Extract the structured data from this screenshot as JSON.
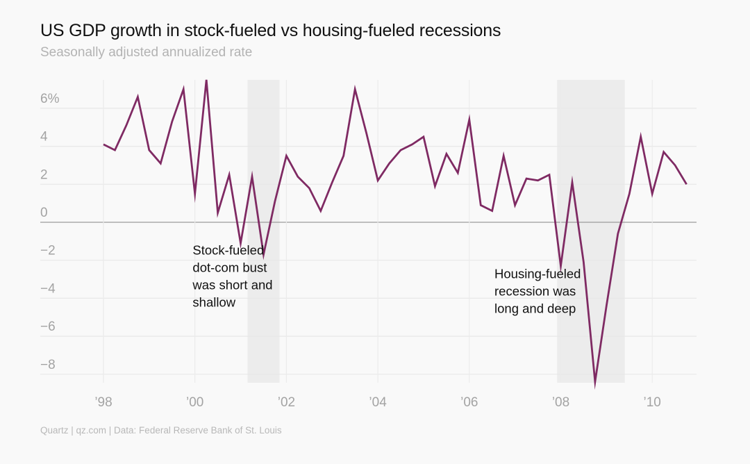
{
  "header": {
    "title": "US GDP growth in stock-fueled vs housing-fueled recessions",
    "subtitle": "Seasonally adjusted annualized rate"
  },
  "footer": {
    "source": "Quartz | qz.com | Data: Federal Reserve Bank of St. Louis"
  },
  "chart_data": {
    "type": "line",
    "title": "US GDP growth in stock-fueled vs housing-fueled recessions",
    "subtitle": "Seasonally adjusted annualized rate",
    "xlabel": "",
    "ylabel": "",
    "xlim": [
      1997.75,
      2011.0
    ],
    "ylim": [
      -8.5,
      7.5
    ],
    "grid": true,
    "line_color": "#7f2a63",
    "recession_color": "#ececec",
    "yticks": [
      {
        "value": 6,
        "label": "6%"
      },
      {
        "value": 4,
        "label": "4"
      },
      {
        "value": 2,
        "label": "2"
      },
      {
        "value": 0,
        "label": "0"
      },
      {
        "value": -2,
        "label": "−2"
      },
      {
        "value": -4,
        "label": "−4"
      },
      {
        "value": -6,
        "label": "−6"
      },
      {
        "value": -8,
        "label": "−8"
      }
    ],
    "xticks": [
      {
        "value": 1998,
        "label": "’98"
      },
      {
        "value": 2000,
        "label": "’00"
      },
      {
        "value": 2002,
        "label": "’02"
      },
      {
        "value": 2004,
        "label": "’04"
      },
      {
        "value": 2006,
        "label": "’06"
      },
      {
        "value": 2008,
        "label": "’08"
      },
      {
        "value": 2010,
        "label": "’10"
      }
    ],
    "recessions": [
      {
        "start": 2001.15,
        "end": 2001.85
      },
      {
        "start": 2007.92,
        "end": 2009.4
      }
    ],
    "series": [
      {
        "name": "GDP growth",
        "x": [
          1998.0,
          1998.25,
          1998.5,
          1998.75,
          1999.0,
          1999.25,
          1999.5,
          1999.75,
          2000.0,
          2000.25,
          2000.5,
          2000.75,
          2001.0,
          2001.25,
          2001.5,
          2001.75,
          2002.0,
          2002.25,
          2002.5,
          2002.75,
          2003.0,
          2003.25,
          2003.5,
          2003.75,
          2004.0,
          2004.25,
          2004.5,
          2004.75,
          2005.0,
          2005.25,
          2005.5,
          2005.75,
          2006.0,
          2006.25,
          2006.5,
          2006.75,
          2007.0,
          2007.25,
          2007.5,
          2007.75,
          2008.0,
          2008.25,
          2008.5,
          2008.75,
          2009.0,
          2009.25,
          2009.5,
          2009.75,
          2010.0,
          2010.25,
          2010.5,
          2010.75
        ],
        "values": [
          4.1,
          3.8,
          5.1,
          6.6,
          3.8,
          3.1,
          5.3,
          7.0,
          1.5,
          7.5,
          0.5,
          2.5,
          -1.1,
          2.4,
          -1.7,
          1.1,
          3.5,
          2.4,
          1.8,
          0.6,
          2.1,
          3.5,
          7.0,
          4.7,
          2.2,
          3.1,
          3.8,
          4.1,
          4.5,
          1.9,
          3.6,
          2.6,
          5.4,
          0.9,
          0.6,
          3.5,
          0.9,
          2.3,
          2.2,
          2.5,
          -2.3,
          2.1,
          -2.1,
          -8.4,
          -4.4,
          -0.6,
          1.5,
          4.5,
          1.5,
          3.7,
          3.0,
          2.0
        ]
      }
    ],
    "annotations": [
      {
        "lines": [
          "Stock-fueled",
          "dot-com bust",
          "was short and",
          "shallow"
        ],
        "anchor_x": 1999.95,
        "anchor_y": -1.7
      },
      {
        "lines": [
          "Housing-fueled",
          "recession was",
          "long and deep"
        ],
        "anchor_x": 2006.55,
        "anchor_y": -2.95
      }
    ]
  }
}
